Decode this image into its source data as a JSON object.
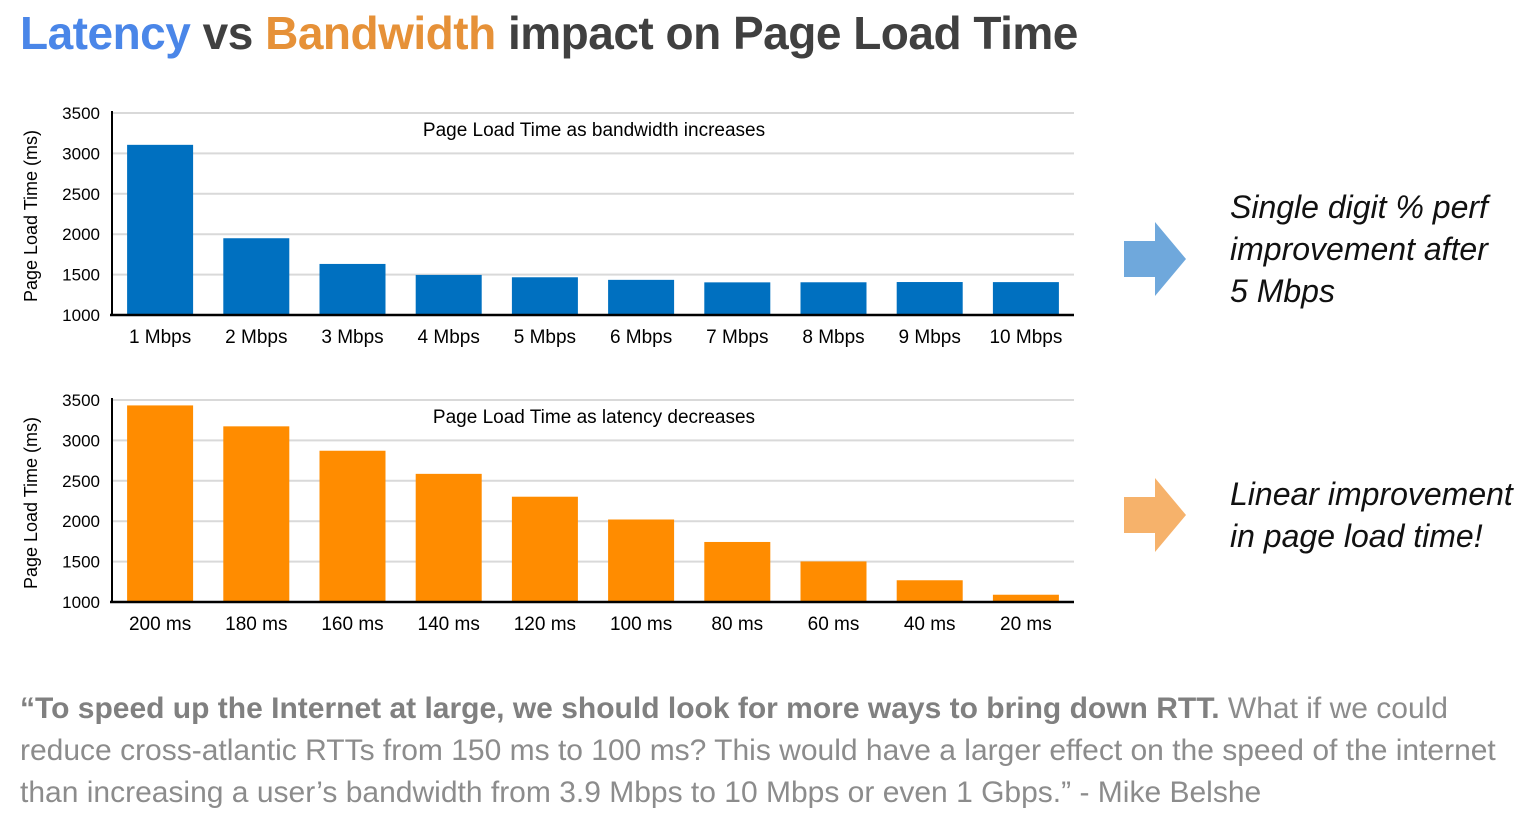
{
  "title": {
    "part1": "Latency",
    "part2": " vs ",
    "part3": "Bandwidth",
    "part4": " impact on Page Load Time"
  },
  "colors": {
    "latency_title": "#4a86e8",
    "bandwidth_title": "#e69138",
    "bandwidth_bars": "#0070c0",
    "latency_bars": "#ff8c00",
    "arrow_blue": "#6fa8dc",
    "arrow_orange": "#f6b26b",
    "grid": "#d9d9d9"
  },
  "chart_data": [
    {
      "type": "bar",
      "title": "Page Load Time as bandwidth increases",
      "xlabel": "",
      "ylabel": "Page Load Time (ms)",
      "ylim": [
        1000,
        3500
      ],
      "yticks": [
        1000,
        1500,
        2000,
        2500,
        3000,
        3500
      ],
      "grid": true,
      "categories": [
        "1 Mbps",
        "2 Mbps",
        "3 Mbps",
        "4 Mbps",
        "5 Mbps",
        "6 Mbps",
        "7 Mbps",
        "8 Mbps",
        "9 Mbps",
        "10 Mbps"
      ],
      "values": [
        3106,
        1950,
        1632,
        1496,
        1467,
        1435,
        1404,
        1405,
        1408,
        1407
      ],
      "color": "#0070c0"
    },
    {
      "type": "bar",
      "title": "Page Load Time as latency decreases",
      "xlabel": "",
      "ylabel": "Page Load Time (ms)",
      "ylim": [
        1000,
        3500
      ],
      "yticks": [
        1000,
        1500,
        2000,
        2500,
        3000,
        3500
      ],
      "grid": true,
      "categories": [
        "200 ms",
        "180 ms",
        "160 ms",
        "140 ms",
        "120 ms",
        "100 ms",
        "80 ms",
        "60 ms",
        "40 ms",
        "20 ms"
      ],
      "values": [
        3433,
        3174,
        2872,
        2586,
        2303,
        2021,
        1743,
        1502,
        1269,
        1090
      ],
      "color": "#ff8c00"
    }
  ],
  "notes": {
    "bandwidth": "Single digit % perf\nimprovement after\n5 Mbps",
    "latency": "Linear improvement\nin page load time!"
  },
  "quote": {
    "bold": "“To speed up the Internet at large, we should look for more ways to bring down RTT.",
    "rest": " What if we could reduce cross-atlantic RTTs from 150 ms to 100 ms? This would have a larger effect on the speed of the internet than increasing a user’s bandwidth from 3.9 Mbps to 10 Mbps or even 1 Gbps.” - Mike Belshe"
  }
}
